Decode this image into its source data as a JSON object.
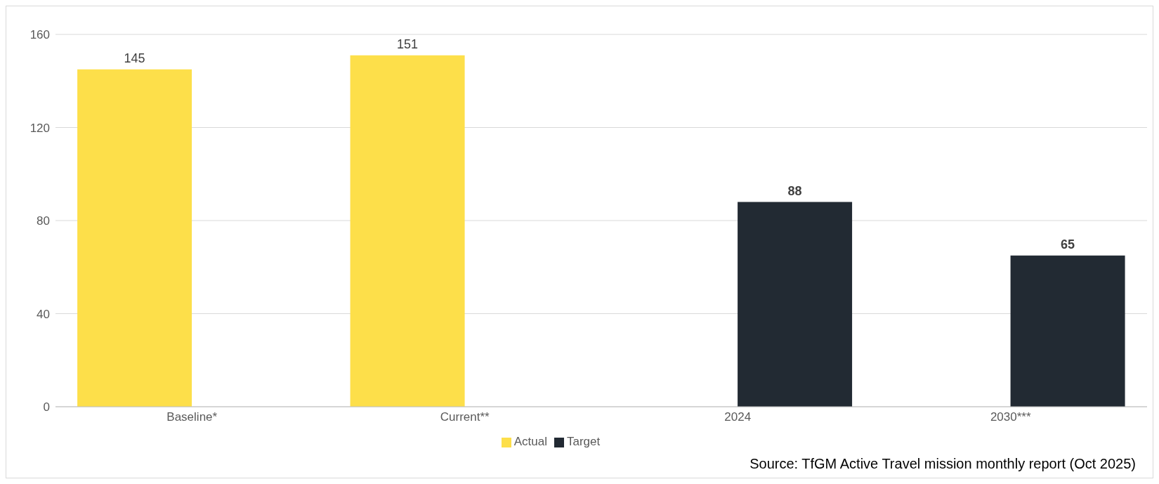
{
  "chart_data": {
    "type": "bar",
    "categories": [
      "Baseline*",
      "Current**",
      "2024",
      "2030***"
    ],
    "series": [
      {
        "name": "Actual",
        "color": "#fddf4a",
        "values": [
          145,
          151,
          null,
          null
        ]
      },
      {
        "name": "Target",
        "color": "#222a33",
        "values": [
          null,
          null,
          88,
          65
        ]
      }
    ],
    "ylim": [
      0,
      160
    ],
    "yticks": [
      0,
      40,
      80,
      120,
      160
    ],
    "grid": "y",
    "legend": "bottom",
    "data_labels": true,
    "annotations": [
      "Source: TfGM Active Travel mission monthly report (Oct 2025)"
    ]
  }
}
